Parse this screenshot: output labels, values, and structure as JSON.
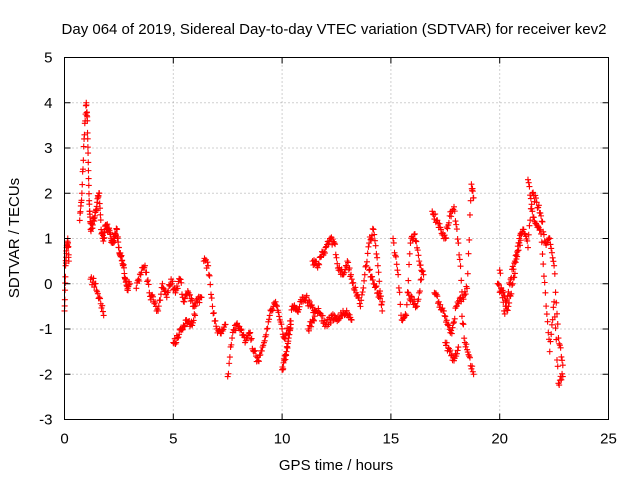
{
  "chart_data": {
    "type": "scatter",
    "title": "Day 064 of 2019, Sidereal Day-to-day VTEC variation (SDTVAR) for receiver kev2",
    "xlabel": "GPS time / hours",
    "ylabel": "SDTVAR / TECUs",
    "xlim": [
      0,
      25
    ],
    "ylim": [
      -3,
      5
    ],
    "xticks": [
      "0",
      "5",
      "10",
      "15",
      "20",
      "25"
    ],
    "yticks": [
      "-3",
      "-2",
      "-1",
      "0",
      "1",
      "2",
      "3",
      "4",
      "5"
    ],
    "grid": true,
    "marker": "+",
    "color": "#ff0000",
    "series": [
      {
        "name": "SDTVAR",
        "segments": [
          {
            "x": [
              0.0,
              0.05,
              0.1,
              0.15,
              0.2
            ],
            "y": [
              -0.6,
              0.4,
              0.8,
              1.0,
              0.5
            ]
          },
          {
            "x": [
              0.7,
              0.8,
              0.9,
              1.0,
              1.05,
              1.1,
              1.15,
              1.2,
              1.3,
              1.4,
              1.5,
              1.6,
              1.7,
              1.8,
              1.9,
              2.0,
              2.1,
              2.2,
              2.3,
              2.4,
              2.5,
              2.6,
              2.7,
              2.8,
              2.9,
              3.0
            ],
            "y": [
              1.4,
              2.0,
              3.2,
              4.0,
              3.6,
              2.5,
              1.6,
              1.2,
              1.3,
              1.5,
              1.8,
              2.0,
              1.1,
              1.0,
              1.3,
              1.2,
              1.1,
              0.9,
              1.0,
              1.2,
              0.8,
              0.6,
              0.4,
              0.1,
              -0.1,
              0.0
            ]
          },
          {
            "x": [
              1.2,
              1.4,
              1.6,
              1.8
            ],
            "y": [
              0.1,
              0.0,
              -0.3,
              -0.7
            ]
          },
          {
            "x": [
              3.3,
              3.5,
              3.7,
              3.9,
              4.1,
              4.3,
              4.5,
              4.7,
              4.9,
              5.1,
              5.3,
              5.5,
              5.7,
              5.9,
              6.1,
              6.3
            ],
            "y": [
              -0.1,
              0.2,
              0.4,
              -0.2,
              -0.4,
              -0.6,
              0.0,
              -0.3,
              0.1,
              -0.2,
              0.1,
              -0.4,
              -0.2,
              -0.5,
              -0.4,
              -0.3
            ]
          },
          {
            "x": [
              5.0,
              5.2,
              5.4,
              5.6,
              5.8,
              6.0
            ],
            "y": [
              -1.3,
              -1.2,
              -1.0,
              -0.8,
              -0.9,
              -0.7
            ]
          },
          {
            "x": [
              6.4,
              6.6,
              6.8,
              7.0,
              7.2,
              7.4
            ],
            "y": [
              0.5,
              0.4,
              -0.5,
              -1.0,
              -1.1,
              -0.9
            ]
          },
          {
            "x": [
              7.5,
              7.7,
              7.9,
              8.1,
              8.3,
              8.5,
              8.7,
              8.9,
              9.1,
              9.3,
              9.5,
              9.7,
              9.9,
              10.1,
              10.3,
              10.5,
              10.7,
              10.9,
              11.1,
              11.3,
              11.5
            ],
            "y": [
              -2.05,
              -1.2,
              -0.9,
              -1.0,
              -1.3,
              -1.1,
              -1.5,
              -1.7,
              -1.4,
              -1.0,
              -0.6,
              -0.4,
              -0.8,
              -1.2,
              -1.0,
              -0.5,
              -0.6,
              -0.4,
              -0.3,
              -0.5,
              -0.6
            ]
          },
          {
            "x": [
              10.0,
              10.1,
              10.2,
              10.3,
              10.4
            ],
            "y": [
              -1.9,
              -1.7,
              -1.5,
              -1.2,
              -0.9
            ]
          },
          {
            "x": [
              11.2,
              11.4,
              11.6,
              11.8,
              12.0,
              12.2,
              12.4,
              12.6,
              12.8,
              13.0,
              13.2
            ],
            "y": [
              -1.0,
              -0.8,
              -0.6,
              -0.7,
              -0.9,
              -0.8,
              -0.7,
              -0.8,
              -0.6,
              -0.7,
              -0.8
            ]
          },
          {
            "x": [
              11.4,
              11.6,
              11.8,
              12.0,
              12.2,
              12.4,
              12.6,
              12.8,
              13.0,
              13.2,
              13.4,
              13.6,
              13.8,
              14.0,
              14.2,
              14.4,
              14.6
            ],
            "y": [
              0.5,
              0.4,
              0.6,
              0.8,
              1.0,
              0.9,
              0.3,
              0.2,
              0.5,
              0.1,
              -0.2,
              -0.5,
              0.2,
              0.9,
              1.2,
              0.4,
              -0.6
            ]
          },
          {
            "x": [
              14.0,
              14.2,
              14.4,
              14.6
            ],
            "y": [
              0.3,
              0.0,
              -0.2,
              -0.4
            ]
          },
          {
            "x": [
              15.1,
              15.3,
              15.5,
              15.7,
              15.9,
              16.1,
              16.3,
              16.5
            ],
            "y": [
              1.0,
              0.3,
              -0.8,
              -0.7,
              0.9,
              1.1,
              0.5,
              0.2
            ]
          },
          {
            "x": [
              15.8,
              16.0,
              16.2,
              16.4
            ],
            "y": [
              -0.2,
              -0.4,
              -0.5,
              0.1
            ]
          },
          {
            "x": [
              16.9,
              17.1,
              17.3,
              17.5,
              17.7,
              17.9,
              18.1,
              18.3,
              18.5,
              18.7,
              18.8
            ],
            "y": [
              1.6,
              1.4,
              1.2,
              1.0,
              1.5,
              1.7,
              0.9,
              -0.3,
              -0.1,
              2.2,
              1.9
            ]
          },
          {
            "x": [
              17.0,
              17.2,
              17.4,
              17.6,
              17.8,
              18.0,
              18.2,
              18.4,
              18.6,
              18.8
            ],
            "y": [
              -0.2,
              -0.4,
              -0.6,
              -0.9,
              -1.1,
              -0.5,
              -0.3,
              -1.3,
              -1.6,
              -2.0
            ]
          },
          {
            "x": [
              17.5,
              17.7,
              17.9,
              18.1
            ],
            "y": [
              -1.3,
              -1.5,
              -1.7,
              -1.4
            ]
          },
          {
            "x": [
              19.9,
              20.1,
              20.3,
              20.5,
              20.7,
              20.9,
              21.1,
              21.3,
              21.5,
              21.7,
              21.9,
              22.1,
              22.3,
              22.5,
              22.7,
              22.9
            ],
            "y": [
              0.0,
              -0.2,
              -0.4,
              0.1,
              0.5,
              1.0,
              1.2,
              0.8,
              2.0,
              1.8,
              1.5,
              0.9,
              1.0,
              0.4,
              -1.2,
              -1.8
            ]
          },
          {
            "x": [
              20.0,
              20.2,
              20.4,
              20.6,
              20.8,
              21.0
            ],
            "y": [
              0.3,
              -0.6,
              -0.5,
              0.0,
              0.6,
              1.1
            ]
          },
          {
            "x": [
              21.3,
              21.5,
              21.7,
              21.9,
              22.1,
              22.3,
              22.5,
              22.7,
              22.9
            ],
            "y": [
              2.3,
              1.6,
              1.3,
              1.1,
              -0.2,
              -1.5,
              -0.4,
              -2.2,
              -2.05
            ]
          }
        ]
      }
    ]
  }
}
